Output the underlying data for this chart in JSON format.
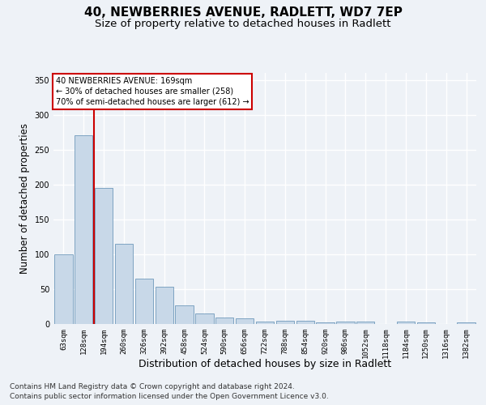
{
  "title_line1": "40, NEWBERRIES AVENUE, RADLETT, WD7 7EP",
  "title_line2": "Size of property relative to detached houses in Radlett",
  "xlabel": "Distribution of detached houses by size in Radlett",
  "ylabel": "Number of detached properties",
  "categories": [
    "63sqm",
    "128sqm",
    "194sqm",
    "260sqm",
    "326sqm",
    "392sqm",
    "458sqm",
    "524sqm",
    "590sqm",
    "656sqm",
    "722sqm",
    "788sqm",
    "854sqm",
    "920sqm",
    "986sqm",
    "1052sqm",
    "1118sqm",
    "1184sqm",
    "1250sqm",
    "1316sqm",
    "1382sqm"
  ],
  "values": [
    100,
    270,
    195,
    115,
    65,
    53,
    27,
    15,
    9,
    8,
    4,
    5,
    5,
    2,
    3,
    4,
    0,
    3,
    2,
    0,
    2
  ],
  "bar_color": "#c8d8e8",
  "bar_edge_color": "#5a8ab0",
  "vline_x": 1.5,
  "vline_color": "#cc0000",
  "annotation_title": "40 NEWBERRIES AVENUE: 169sqm",
  "annotation_line1": "← 30% of detached houses are smaller (258)",
  "annotation_line2": "70% of semi-detached houses are larger (612) →",
  "annotation_box_color": "#ffffff",
  "annotation_box_edge": "#cc0000",
  "ylim": [
    0,
    360
  ],
  "yticks": [
    0,
    50,
    100,
    150,
    200,
    250,
    300,
    350
  ],
  "footer_line1": "Contains HM Land Registry data © Crown copyright and database right 2024.",
  "footer_line2": "Contains public sector information licensed under the Open Government Licence v3.0.",
  "background_color": "#eef2f7",
  "grid_color": "#ffffff",
  "title_fontsize": 11,
  "subtitle_fontsize": 9.5,
  "axis_label_fontsize": 8.5,
  "tick_fontsize": 6.5,
  "footer_fontsize": 6.5
}
